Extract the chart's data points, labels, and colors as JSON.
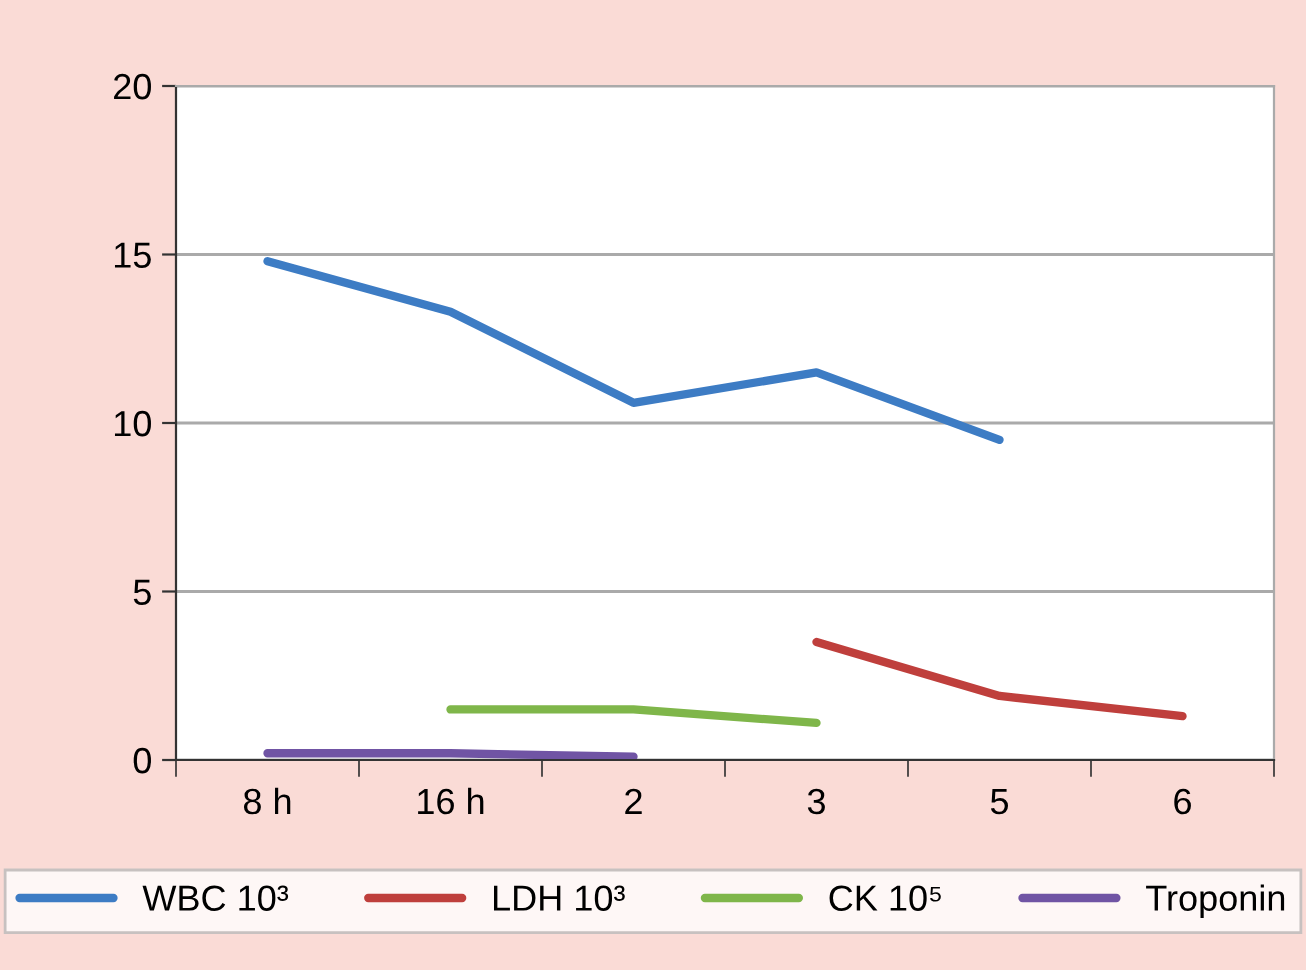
{
  "chart_data": {
    "type": "line",
    "categories": [
      "8 h",
      "16 h",
      "2",
      "3",
      "5",
      "6"
    ],
    "series": [
      {
        "name": "WBC 10³",
        "color": "#3d7cc4",
        "values": [
          14.8,
          13.3,
          10.6,
          11.5,
          9.5,
          null
        ]
      },
      {
        "name": "LDH 10³",
        "color": "#bf3f3c",
        "values": [
          null,
          null,
          null,
          3.5,
          1.9,
          1.3
        ]
      },
      {
        "name": "CK 10⁵",
        "color": "#7fb64a",
        "values": [
          null,
          1.5,
          1.5,
          1.1,
          null,
          null
        ]
      },
      {
        "name": "Troponin",
        "color": "#7054a4",
        "values": [
          0.2,
          0.2,
          0.1,
          null,
          null,
          null
        ]
      }
    ],
    "ylim": [
      0,
      20
    ],
    "yticks": [
      0,
      5,
      10,
      15,
      20
    ],
    "grid": "y",
    "legend": "bottom",
    "marker": "none",
    "line_style": "solid"
  }
}
